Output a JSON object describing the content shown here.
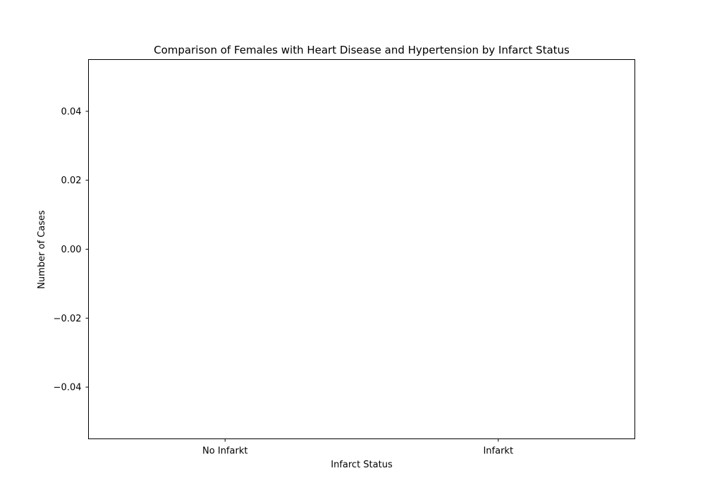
{
  "chart_data": {
    "type": "bar",
    "title": "Comparison of Females with Heart Disease and Hypertension by Infarct Status",
    "xlabel": "Infarct Status",
    "ylabel": "Number of Cases",
    "categories": [
      "No Infarkt",
      "Infarkt"
    ],
    "values": [
      0,
      0
    ],
    "ylim": [
      -0.055,
      0.055
    ],
    "yticks": [
      -0.04,
      -0.02,
      0.0,
      0.02,
      0.04
    ],
    "ytick_labels": [
      "−0.04",
      "−0.02",
      "0.00",
      "0.02",
      "0.04"
    ],
    "grid": false,
    "legend": "none",
    "colors": {
      "axes": "#000000",
      "background": "#ffffff"
    }
  }
}
